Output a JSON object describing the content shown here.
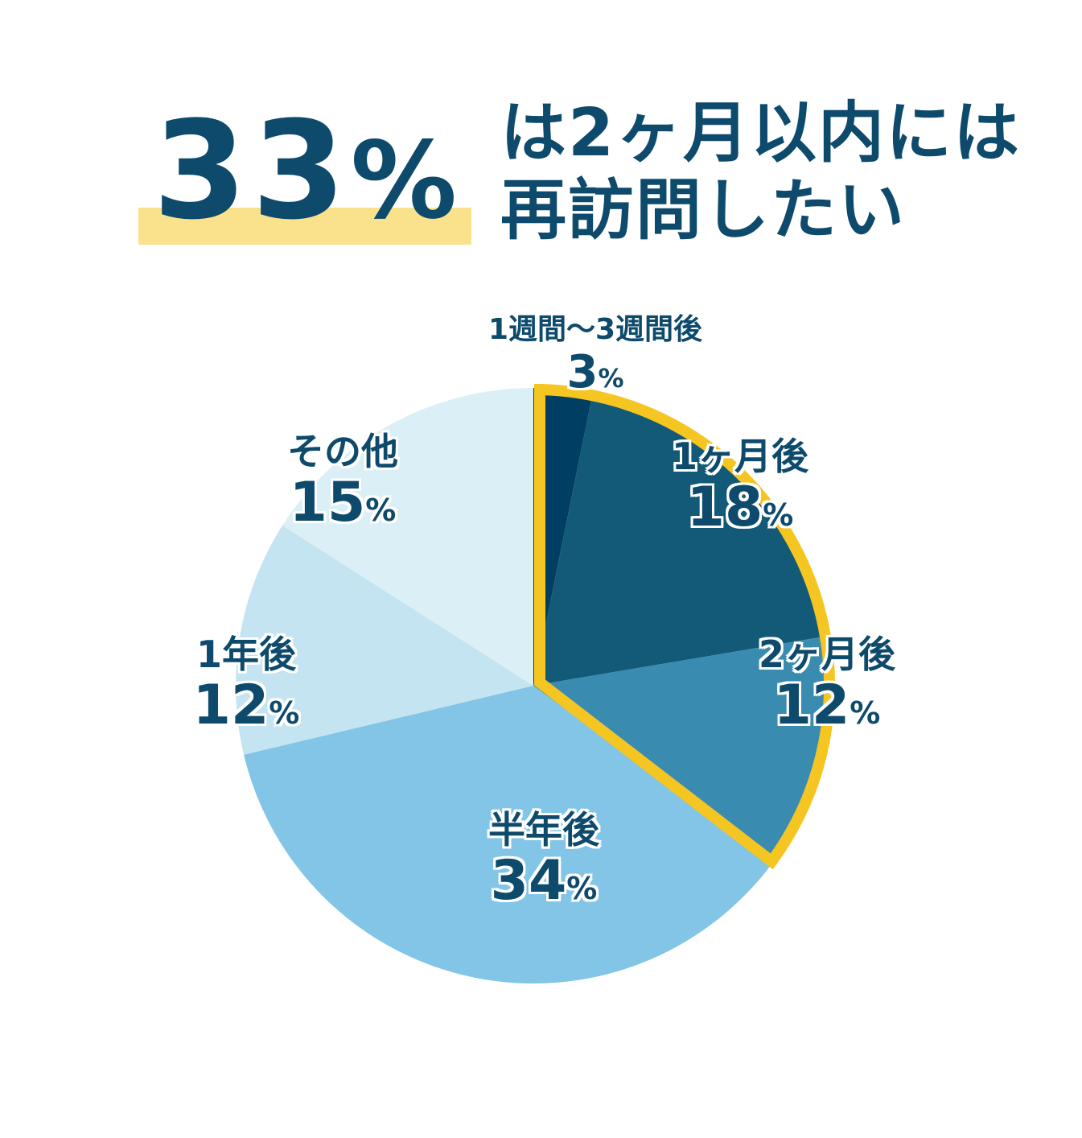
{
  "headline": {
    "number": "33",
    "unit": "%",
    "line1": "は2ヶ月以内には",
    "line2": "再訪問したい"
  },
  "chart_data": {
    "type": "pie",
    "title": "33%は2ヶ月以内には再訪問したい",
    "slices": [
      {
        "label": "1週間〜3週間後",
        "value": 3,
        "pct_text": "3",
        "unit": "%",
        "color": "#003f63"
      },
      {
        "label": "1ヶ月後",
        "value": 18,
        "pct_text": "18",
        "unit": "%",
        "color": "#135a78"
      },
      {
        "label": "2ヶ月後",
        "value": 12,
        "pct_text": "12",
        "unit": "%",
        "color": "#3a8bb0"
      },
      {
        "label": "半年後",
        "value": 34,
        "pct_text": "34",
        "unit": "%",
        "color": "#82c5e6"
      },
      {
        "label": "1年後",
        "value": 12,
        "pct_text": "12",
        "unit": "%",
        "color": "#c3e4f0"
      },
      {
        "label": "その他",
        "value": 15,
        "pct_text": "15",
        "unit": "%",
        "color": "#dbeff7"
      }
    ],
    "highlight": {
      "slices": [
        0,
        1,
        2
      ],
      "color": "#f5c521"
    }
  }
}
